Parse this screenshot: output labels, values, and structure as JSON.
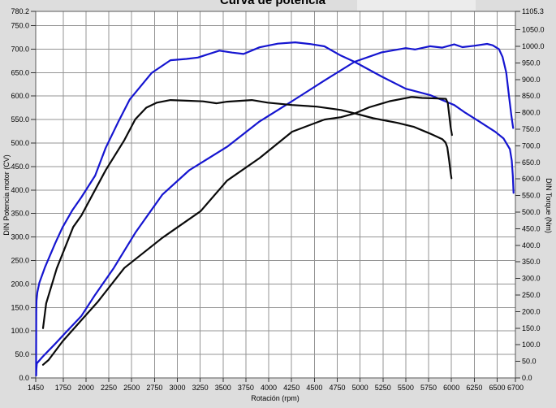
{
  "page": {
    "background_color": "#dddddd",
    "plot_background_color": "#ffffff",
    "grid_color": "#949494",
    "border_color": "#5a5a5a",
    "top_panel_fragment": true
  },
  "chart_data": {
    "type": "line",
    "title": "Curva de potencia",
    "xlabel": "Rotación (rpm)",
    "ylabel_left": "DIN Potencia motor (CV)",
    "ylabel_right": "DIN Torque (Nm)",
    "xlim": [
      1450,
      6700
    ],
    "left_lim": [
      0,
      780.2
    ],
    "right_lim": [
      0,
      1105.3
    ],
    "grid": true,
    "legend": "none",
    "x_ticks": [
      1450,
      1750,
      2000,
      2250,
      2500,
      2750,
      3000,
      3250,
      3500,
      3750,
      4000,
      4250,
      4500,
      4750,
      5000,
      5250,
      5500,
      5750,
      6000,
      6250,
      6500,
      6700
    ],
    "left_ticks": [
      0,
      50,
      100,
      150,
      200,
      250,
      300,
      350,
      400,
      450,
      500,
      550,
      600,
      650,
      700,
      750,
      780.2
    ],
    "right_ticks": [
      0,
      50,
      100,
      150,
      200,
      250,
      300,
      350,
      400,
      450,
      500,
      550,
      600,
      650,
      700,
      750,
      800,
      850,
      900,
      950,
      1000,
      1050,
      1105.3
    ],
    "series": [
      {
        "name": "power-blue",
        "axis": "left",
        "unit": "CV",
        "color": "#1515d0",
        "points": [
          [
            1454,
            5
          ],
          [
            1457,
            18
          ],
          [
            1462,
            31
          ],
          [
            1520,
            44
          ],
          [
            1575,
            55
          ],
          [
            1665,
            73
          ],
          [
            1770,
            95
          ],
          [
            1950,
            132
          ],
          [
            2100,
            177
          ],
          [
            2305,
            234
          ],
          [
            2540,
            309
          ],
          [
            2835,
            390
          ],
          [
            3130,
            442
          ],
          [
            3545,
            492
          ],
          [
            3900,
            546
          ],
          [
            4255,
            589
          ],
          [
            4610,
            633
          ],
          [
            4940,
            673
          ],
          [
            5235,
            693
          ],
          [
            5500,
            702
          ],
          [
            5600,
            699
          ],
          [
            5765,
            706
          ],
          [
            5900,
            703
          ],
          [
            6030,
            710
          ],
          [
            6120,
            704
          ],
          [
            6250,
            707
          ],
          [
            6390,
            711
          ],
          [
            6450,
            708
          ],
          [
            6520,
            700
          ],
          [
            6560,
            683
          ],
          [
            6600,
            650
          ],
          [
            6630,
            600
          ],
          [
            6655,
            560
          ],
          [
            6675,
            532
          ]
        ]
      },
      {
        "name": "torque-blue",
        "axis": "right",
        "unit": "Nm",
        "color": "#1515d0",
        "points": [
          [
            1454,
            7
          ],
          [
            1454,
            70
          ],
          [
            1455,
            140
          ],
          [
            1456,
            200
          ],
          [
            1459,
            233
          ],
          [
            1468,
            258
          ],
          [
            1490,
            287
          ],
          [
            1550,
            333
          ],
          [
            1663,
            406
          ],
          [
            1743,
            454
          ],
          [
            1850,
            505
          ],
          [
            1950,
            545
          ],
          [
            2100,
            610
          ],
          [
            2215,
            693
          ],
          [
            2350,
            770
          ],
          [
            2480,
            840
          ],
          [
            2720,
            920
          ],
          [
            2925,
            958
          ],
          [
            3100,
            962
          ],
          [
            3225,
            966
          ],
          [
            3460,
            987
          ],
          [
            3600,
            981
          ],
          [
            3725,
            977
          ],
          [
            3900,
            997
          ],
          [
            4100,
            1008
          ],
          [
            4290,
            1012
          ],
          [
            4450,
            1007
          ],
          [
            4610,
            1000
          ],
          [
            4790,
            972
          ],
          [
            4940,
            953
          ],
          [
            5235,
            909
          ],
          [
            5500,
            872
          ],
          [
            5765,
            853
          ],
          [
            6030,
            823
          ],
          [
            6150,
            800
          ],
          [
            6300,
            774
          ],
          [
            6480,
            742
          ],
          [
            6570,
            722
          ],
          [
            6640,
            690
          ],
          [
            6660,
            655
          ],
          [
            6672,
            610
          ],
          [
            6680,
            558
          ]
        ]
      },
      {
        "name": "power-black",
        "axis": "left",
        "unit": "CV",
        "color": "#0a0a0a",
        "points": [
          [
            1530,
            28
          ],
          [
            1590,
            38
          ],
          [
            1745,
            78
          ],
          [
            1950,
            123
          ],
          [
            2125,
            161
          ],
          [
            2420,
            234
          ],
          [
            2835,
            298
          ],
          [
            3255,
            355
          ],
          [
            3545,
            420
          ],
          [
            3900,
            468
          ],
          [
            4255,
            524
          ],
          [
            4610,
            550
          ],
          [
            4790,
            555
          ],
          [
            4940,
            563
          ],
          [
            5100,
            576
          ],
          [
            5325,
            589
          ],
          [
            5565,
            598
          ],
          [
            5680,
            596
          ],
          [
            5855,
            595
          ],
          [
            5940,
            594
          ],
          [
            5960,
            585
          ],
          [
            5975,
            560
          ],
          [
            5990,
            535
          ],
          [
            6005,
            517
          ]
        ]
      },
      {
        "name": "torque-black",
        "axis": "right",
        "unit": "Nm",
        "color": "#0a0a0a",
        "points": [
          [
            1530,
            150
          ],
          [
            1565,
            225
          ],
          [
            1680,
            330
          ],
          [
            1860,
            455
          ],
          [
            1950,
            490
          ],
          [
            2215,
            626
          ],
          [
            2420,
            717
          ],
          [
            2540,
            780
          ],
          [
            2660,
            815
          ],
          [
            2775,
            830
          ],
          [
            2925,
            838
          ],
          [
            3100,
            836
          ],
          [
            3280,
            834
          ],
          [
            3430,
            828
          ],
          [
            3545,
            833
          ],
          [
            3815,
            838
          ],
          [
            3990,
            830
          ],
          [
            4255,
            823
          ],
          [
            4525,
            818
          ],
          [
            4790,
            808
          ],
          [
            4940,
            798
          ],
          [
            5145,
            783
          ],
          [
            5410,
            769
          ],
          [
            5590,
            757
          ],
          [
            5765,
            737
          ],
          [
            5900,
            720
          ],
          [
            5935,
            710
          ],
          [
            5955,
            695
          ],
          [
            5975,
            655
          ],
          [
            5990,
            620
          ],
          [
            6000,
            602
          ]
        ]
      }
    ]
  }
}
